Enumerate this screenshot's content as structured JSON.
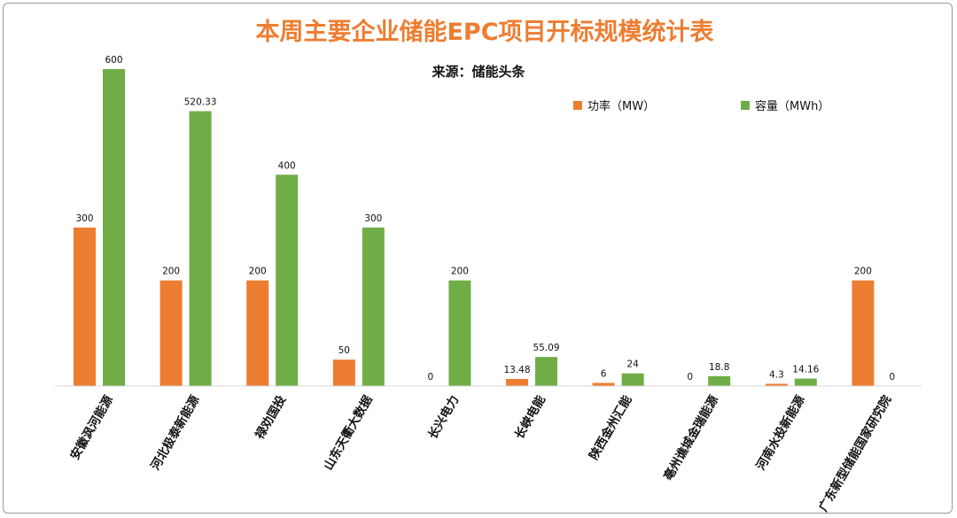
{
  "chart_data": {
    "type": "bar",
    "title": "本周主要企业储能EPC项目开标规模统计表",
    "subtitle": "来源：储能头条",
    "categories": [
      "安徽沨河能源",
      "河北极泰新能源",
      "禄劝国投",
      "山东天衢大数据",
      "长兴电力",
      "长峡电能",
      "陕西金州汇能",
      "亳州谯城金瑞能源",
      "河南水投新能源",
      "广东新型储能国家研究院"
    ],
    "series": [
      {
        "name": "功率（MW）",
        "color": "#ed7d31",
        "values": [
          300,
          200,
          200,
          50,
          0,
          13.48,
          6,
          0,
          4.3,
          200
        ],
        "labels": [
          "300",
          "200",
          "200",
          "50",
          "0",
          "13.48",
          "6",
          "0",
          "4.3",
          "200"
        ]
      },
      {
        "name": "容量（MWh）",
        "color": "#70ad47",
        "values": [
          600,
          520.33,
          400,
          300,
          200,
          55.09,
          24,
          18.8,
          14.16,
          0
        ],
        "labels": [
          "600",
          "520.33",
          "400",
          "300",
          "200",
          "55.09",
          "24",
          "18.8",
          "14.16",
          "0"
        ]
      }
    ],
    "ylim": [
      0,
      600
    ],
    "legend_position": "top-right",
    "grid": false
  }
}
